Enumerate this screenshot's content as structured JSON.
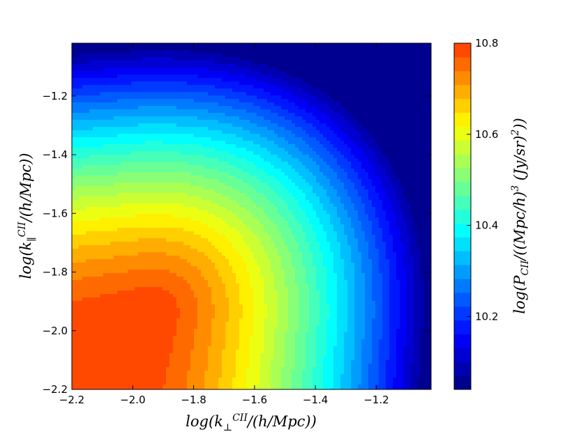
{
  "chart_data": {
    "type": "heatmap",
    "subtype": "filled-contour",
    "title": "",
    "xlabel": "log(k⊥CII/(h/Mpc))",
    "ylabel": "log(k∥CII/(h/Mpc))",
    "colorbar_label": "log(PCII/((Mpc/h)3 (Jy/sr)2))",
    "xlim": [
      -2.2,
      -1.02
    ],
    "ylim": [
      -2.2,
      -1.02
    ],
    "x_ticks": [
      "−2.2",
      "−2.0",
      "−1.8",
      "−1.6",
      "−1.4",
      "−1.2"
    ],
    "y_ticks": [
      "−1.2",
      "−1.4",
      "−1.6",
      "−1.8",
      "−2.0",
      "−2.2"
    ],
    "colorbar_range": [
      10.04,
      10.8
    ],
    "colorbar_ticks": [
      "10.8",
      "10.6",
      "10.4",
      "10.2"
    ],
    "colormap": "jet (truncated, blue to orange)",
    "levels": 25,
    "grid": false,
    "model": {
      "description": "values estimated from contour bands",
      "peak_value": 10.8,
      "peak_location": [
        -1.95,
        -1.95
      ],
      "corner_value_kx_max_kpar_max": 10.05,
      "corner_value_kx_min_kpar_max": 10.3,
      "corner_value_kx_max_kpar_min": 10.3
    }
  }
}
